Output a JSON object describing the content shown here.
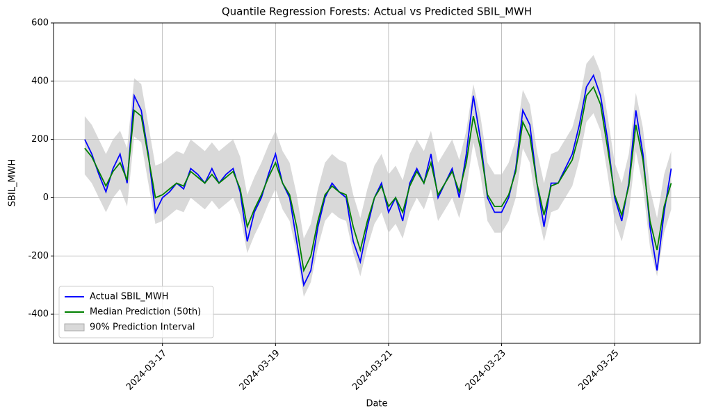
{
  "chart_data": {
    "type": "line",
    "title": "Quantile Regression Forests: Actual vs Predicted SBIL_MWH",
    "xlabel": "Date",
    "ylabel": "SBIL_MWH",
    "x": [
      "2024-03-15T15:00",
      "2024-03-15T18:00",
      "2024-03-15T21:00",
      "2024-03-16T00:00",
      "2024-03-16T03:00",
      "2024-03-16T06:00",
      "2024-03-16T09:00",
      "2024-03-16T12:00",
      "2024-03-16T15:00",
      "2024-03-16T18:00",
      "2024-03-16T21:00",
      "2024-03-17T00:00",
      "2024-03-17T03:00",
      "2024-03-17T06:00",
      "2024-03-17T09:00",
      "2024-03-17T12:00",
      "2024-03-17T15:00",
      "2024-03-17T18:00",
      "2024-03-17T21:00",
      "2024-03-18T00:00",
      "2024-03-18T03:00",
      "2024-03-18T06:00",
      "2024-03-18T09:00",
      "2024-03-18T12:00",
      "2024-03-18T15:00",
      "2024-03-18T18:00",
      "2024-03-18T21:00",
      "2024-03-19T00:00",
      "2024-03-19T03:00",
      "2024-03-19T06:00",
      "2024-03-19T09:00",
      "2024-03-19T12:00",
      "2024-03-19T15:00",
      "2024-03-19T18:00",
      "2024-03-19T21:00",
      "2024-03-20T00:00",
      "2024-03-20T03:00",
      "2024-03-20T06:00",
      "2024-03-20T09:00",
      "2024-03-20T12:00",
      "2024-03-20T15:00",
      "2024-03-20T18:00",
      "2024-03-20T21:00",
      "2024-03-21T00:00",
      "2024-03-21T03:00",
      "2024-03-21T06:00",
      "2024-03-21T09:00",
      "2024-03-21T12:00",
      "2024-03-21T15:00",
      "2024-03-21T18:00",
      "2024-03-21T21:00",
      "2024-03-22T00:00",
      "2024-03-22T03:00",
      "2024-03-22T06:00",
      "2024-03-22T09:00",
      "2024-03-22T12:00",
      "2024-03-22T15:00",
      "2024-03-22T18:00",
      "2024-03-22T21:00",
      "2024-03-23T00:00",
      "2024-03-23T03:00",
      "2024-03-23T06:00",
      "2024-03-23T09:00",
      "2024-03-23T12:00",
      "2024-03-23T15:00",
      "2024-03-23T18:00",
      "2024-03-23T21:00",
      "2024-03-24T00:00",
      "2024-03-24T03:00",
      "2024-03-24T06:00",
      "2024-03-24T09:00",
      "2024-03-24T12:00",
      "2024-03-24T15:00",
      "2024-03-24T18:00",
      "2024-03-24T21:00",
      "2024-03-25T00:00",
      "2024-03-25T03:00",
      "2024-03-25T06:00",
      "2024-03-25T09:00",
      "2024-03-25T12:00",
      "2024-03-25T15:00",
      "2024-03-25T18:00",
      "2024-03-25T21:00",
      "2024-03-26T00:00"
    ],
    "series": [
      {
        "name": "Actual SBIL_MWH",
        "color": "#0000ff",
        "values": [
          200,
          150,
          80,
          20,
          100,
          150,
          50,
          350,
          300,
          150,
          -50,
          0,
          20,
          50,
          30,
          100,
          80,
          50,
          100,
          50,
          80,
          100,
          20,
          -150,
          -50,
          0,
          80,
          150,
          50,
          0,
          -150,
          -300,
          -250,
          -100,
          0,
          50,
          20,
          0,
          -150,
          -220,
          -100,
          0,
          50,
          -50,
          0,
          -80,
          50,
          100,
          50,
          150,
          0,
          50,
          100,
          0,
          150,
          350,
          200,
          0,
          -50,
          -50,
          0,
          100,
          300,
          250,
          50,
          -100,
          50,
          50,
          100,
          150,
          250,
          380,
          420,
          350,
          200,
          0,
          -80,
          50,
          300,
          150,
          -100,
          -250,
          -50,
          100
        ]
      },
      {
        "name": "Median Prediction (50th)",
        "color": "#008000",
        "values": [
          170,
          140,
          90,
          40,
          90,
          120,
          60,
          300,
          280,
          140,
          0,
          10,
          30,
          50,
          40,
          90,
          70,
          50,
          80,
          50,
          70,
          90,
          30,
          -100,
          -40,
          10,
          70,
          120,
          50,
          10,
          -100,
          -250,
          -200,
          -80,
          10,
          40,
          20,
          10,
          -100,
          -180,
          -80,
          0,
          40,
          -30,
          0,
          -50,
          40,
          90,
          50,
          120,
          10,
          50,
          90,
          20,
          120,
          280,
          170,
          10,
          -30,
          -30,
          10,
          90,
          260,
          210,
          50,
          -60,
          40,
          50,
          90,
          130,
          220,
          350,
          380,
          320,
          170,
          10,
          -60,
          40,
          250,
          130,
          -80,
          -180,
          -30,
          50
        ]
      }
    ],
    "interval": {
      "name": "90% Prediction Interval",
      "color": "#c0c0c0",
      "lower": [
        80,
        50,
        0,
        -50,
        0,
        30,
        -30,
        210,
        190,
        50,
        -90,
        -80,
        -60,
        -40,
        -50,
        0,
        -20,
        -40,
        -10,
        -40,
        -20,
        0,
        -60,
        -190,
        -130,
        -80,
        -20,
        30,
        -40,
        -80,
        -190,
        -340,
        -290,
        -170,
        -80,
        -50,
        -70,
        -80,
        -190,
        -270,
        -170,
        -90,
        -50,
        -120,
        -90,
        -140,
        -50,
        0,
        -40,
        30,
        -80,
        -40,
        0,
        -70,
        30,
        190,
        80,
        -80,
        -120,
        -120,
        -80,
        0,
        170,
        120,
        -40,
        -150,
        -50,
        -40,
        0,
        40,
        130,
        260,
        290,
        230,
        80,
        -80,
        -150,
        -50,
        160,
        40,
        -170,
        -270,
        -120,
        -40
      ],
      "upper": [
        280,
        250,
        200,
        150,
        200,
        230,
        170,
        410,
        390,
        250,
        110,
        120,
        140,
        160,
        150,
        200,
        180,
        160,
        190,
        160,
        180,
        200,
        140,
        10,
        70,
        120,
        180,
        230,
        160,
        120,
        10,
        -140,
        -90,
        30,
        120,
        150,
        130,
        120,
        10,
        -70,
        30,
        110,
        150,
        80,
        110,
        60,
        150,
        200,
        160,
        230,
        120,
        160,
        200,
        130,
        230,
        390,
        280,
        120,
        80,
        80,
        120,
        200,
        370,
        320,
        160,
        50,
        150,
        160,
        200,
        240,
        330,
        460,
        490,
        430,
        280,
        120,
        50,
        150,
        360,
        240,
        30,
        -70,
        80,
        160
      ]
    },
    "xlim": [
      "2024-03-15T01:45",
      "2024-03-26T12:15"
    ],
    "xticks": [
      "2024-03-17",
      "2024-03-19",
      "2024-03-21",
      "2024-03-23",
      "2024-03-25"
    ],
    "ylim": [
      -500,
      600
    ],
    "yticks": [
      -400,
      -200,
      0,
      200,
      400,
      600
    ],
    "grid": true,
    "legend": "lower left"
  }
}
